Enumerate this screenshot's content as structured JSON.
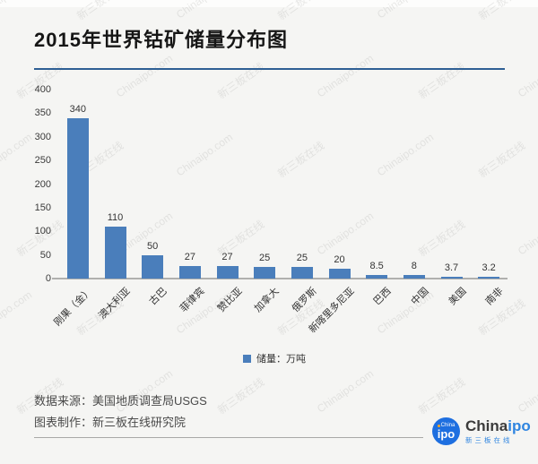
{
  "header": {
    "title": "2015年世界钴矿储量分布图"
  },
  "watermark": {
    "texts": [
      "Chinaipo.com",
      "新三板在线"
    ]
  },
  "chart_data": {
    "type": "bar",
    "title": "2015年世界钴矿储量分布图",
    "categories": [
      "刚果（金）",
      "澳大利亚",
      "古巴",
      "菲律宾",
      "赞比亚",
      "加拿大",
      "俄罗斯",
      "新喀里多尼亚",
      "巴西",
      "中国",
      "美国",
      "南非"
    ],
    "values": [
      340,
      110,
      50,
      27,
      27,
      25,
      25,
      20,
      8.5,
      8,
      3.7,
      3.2
    ],
    "value_labels": [
      "340",
      "110",
      "50",
      "27",
      "27",
      "25",
      "25",
      "20",
      "8.5",
      "8",
      "3.7",
      "3.2"
    ],
    "xlabel": "",
    "ylabel": "",
    "ylim": [
      0,
      400
    ],
    "yticks": [
      0,
      50,
      100,
      150,
      200,
      250,
      300,
      350,
      400
    ],
    "grid": false,
    "legend": {
      "label": "储量：万吨",
      "position": "bottom"
    },
    "bar_color": "#4a7ebb"
  },
  "footer": {
    "source": "数据来源：美国地质调查局USGS",
    "maker": "图表制作：新三板在线研究院"
  },
  "logo": {
    "badge_top": "China",
    "badge_main": "ipo",
    "wordmark_dark": "China",
    "wordmark_blue": "ipo",
    "subtext": "新三板在线"
  },
  "colors": {
    "bar": "#4a7ebb",
    "title_rule": "#2e5f94",
    "background": "#f5f5f3",
    "axis_line": "#b0b0ae",
    "logo_blue": "#1e6fe0"
  }
}
